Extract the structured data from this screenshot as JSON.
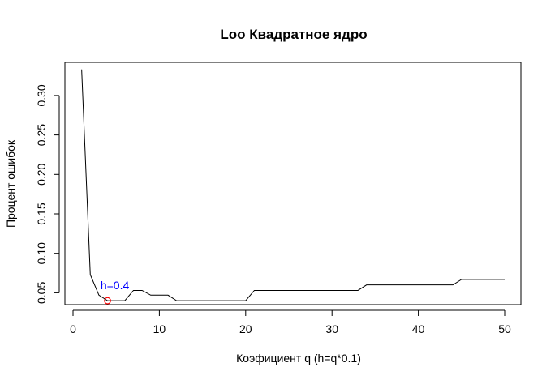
{
  "chart_data": {
    "type": "line",
    "title": "Loo Квадратное ядро",
    "xlabel": "Коэфициент q (h=q*0.1)",
    "ylabel": "Процент ошибок",
    "xlim": [
      0,
      52
    ],
    "ylim": [
      0.035,
      0.342
    ],
    "xticks": [
      0,
      10,
      20,
      30,
      40,
      50
    ],
    "yticks": [
      0.05,
      0.1,
      0.15,
      0.2,
      0.25,
      0.3
    ],
    "ytick_labels": [
      "0.05",
      "0.10",
      "0.15",
      "0.20",
      "0.25",
      "0.30"
    ],
    "xtick_labels": [
      "0",
      "10",
      "20",
      "30",
      "40",
      "50"
    ],
    "grid": false,
    "series": [
      {
        "color": "#000000",
        "x": [
          1,
          2,
          3,
          4,
          5,
          6,
          7,
          8,
          9,
          10,
          11,
          12,
          13,
          14,
          15,
          16,
          17,
          18,
          19,
          20,
          21,
          22,
          23,
          24,
          25,
          26,
          27,
          28,
          29,
          30,
          31,
          32,
          33,
          34,
          35,
          36,
          37,
          38,
          39,
          40,
          41,
          42,
          43,
          44,
          45,
          46,
          47,
          48,
          49,
          50
        ],
        "values": [
          0.333,
          0.073,
          0.047,
          0.04,
          0.04,
          0.04,
          0.053,
          0.053,
          0.047,
          0.047,
          0.047,
          0.04,
          0.04,
          0.04,
          0.04,
          0.04,
          0.04,
          0.04,
          0.04,
          0.04,
          0.053,
          0.053,
          0.053,
          0.053,
          0.053,
          0.053,
          0.053,
          0.053,
          0.053,
          0.053,
          0.053,
          0.053,
          0.053,
          0.06,
          0.06,
          0.06,
          0.06,
          0.06,
          0.06,
          0.06,
          0.06,
          0.06,
          0.06,
          0.06,
          0.067,
          0.067,
          0.067,
          0.067,
          0.067,
          0.067
        ]
      }
    ],
    "highlight": {
      "x": 4,
      "y": 0.04,
      "color": "#ff0000",
      "label": "h=0.4",
      "label_color": "#0000ff"
    }
  }
}
